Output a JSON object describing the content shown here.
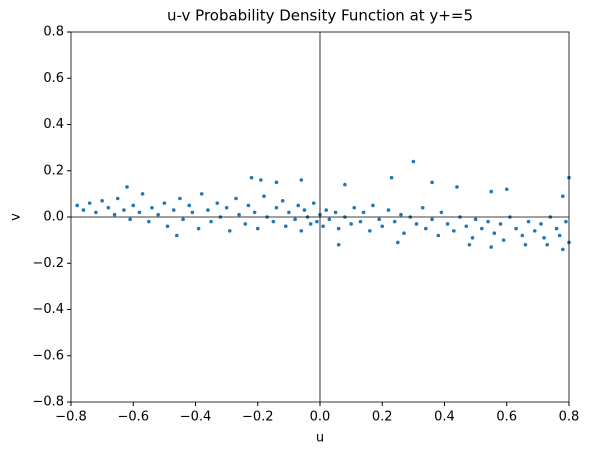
{
  "chart_data": {
    "type": "scatter",
    "title": "u-v Probability Density Function at y+=5",
    "xlabel": "u",
    "ylabel": "v",
    "color": "#1f77b4",
    "xlim": [
      -0.8,
      0.8
    ],
    "ylim": [
      -0.8,
      0.8
    ],
    "xticks": [
      {
        "value": -0.8,
        "label": "−0.8"
      },
      {
        "value": -0.6,
        "label": "−0.6"
      },
      {
        "value": -0.4,
        "label": "−0.4"
      },
      {
        "value": -0.2,
        "label": "−0.2"
      },
      {
        "value": 0,
        "label": "0.0"
      },
      0.2,
      0.4,
      0.6,
      0.8
    ],
    "yticks": [
      {
        "value": -0.8,
        "label": "−0.8"
      },
      {
        "value": -0.6,
        "label": "−0.6"
      },
      {
        "value": -0.4,
        "label": "−0.4"
      },
      {
        "value": -0.2,
        "label": "−0.2"
      },
      {
        "value": 0,
        "label": "0.0"
      },
      0.2,
      0.4,
      0.6,
      0.8
    ],
    "axhline": 0,
    "axvline": 0,
    "x": [
      -0.76,
      -0.74,
      -0.72,
      -0.7,
      -0.68,
      -0.66,
      -0.65,
      -0.63,
      -0.61,
      -0.6,
      -0.58,
      -0.57,
      -0.55,
      -0.54,
      -0.52,
      -0.5,
      -0.49,
      -0.47,
      -0.45,
      -0.44,
      -0.42,
      -0.41,
      -0.39,
      -0.38,
      -0.36,
      -0.35,
      -0.33,
      -0.32,
      -0.3,
      -0.29,
      -0.27,
      -0.26,
      -0.24,
      -0.23,
      -0.21,
      -0.2,
      -0.18,
      -0.17,
      -0.15,
      -0.14,
      -0.12,
      -0.11,
      -0.1,
      -0.08,
      -0.07,
      -0.06,
      -0.05,
      -0.04,
      -0.03,
      -0.02,
      -0.01,
      0.0,
      0.01,
      0.02,
      0.03,
      0.05,
      0.06,
      0.08,
      0.1,
      0.11,
      0.13,
      0.14,
      0.16,
      0.17,
      0.19,
      0.2,
      0.22,
      0.24,
      0.26,
      0.27,
      0.29,
      0.31,
      0.33,
      0.34,
      0.36,
      0.38,
      0.39,
      0.41,
      0.43,
      0.45,
      0.47,
      0.49,
      0.5,
      0.52,
      0.54,
      0.56,
      0.58,
      0.59,
      0.61,
      0.63,
      0.65,
      0.67,
      0.69,
      0.71,
      0.72,
      0.74,
      0.76,
      0.77,
      0.79,
      0.3,
      0.23,
      0.8,
      0.36,
      -0.62,
      -0.22,
      -0.19,
      -0.14,
      -0.06,
      0.44,
      0.08,
      0.55,
      0.6,
      0.78,
      -0.78,
      0.8,
      0.78,
      0.73,
      0.66,
      0.55,
      0.48,
      0.06,
      0.25,
      -0.46
    ],
    "values": [
      0.03,
      0.06,
      0.02,
      0.07,
      0.04,
      0.01,
      0.08,
      0.03,
      -0.01,
      0.05,
      0.02,
      0.1,
      -0.02,
      0.04,
      0.01,
      0.06,
      -0.04,
      0.03,
      0.08,
      -0.01,
      0.05,
      0.02,
      -0.05,
      0.1,
      0.03,
      -0.02,
      0.06,
      0.0,
      0.04,
      -0.06,
      0.08,
      0.01,
      -0.03,
      0.05,
      0.02,
      -0.05,
      0.09,
      0.0,
      -0.02,
      0.04,
      0.07,
      -0.04,
      0.02,
      -0.01,
      0.05,
      -0.06,
      0.03,
      0.0,
      -0.03,
      0.06,
      -0.02,
      0.01,
      -0.04,
      0.03,
      -0.01,
      0.02,
      -0.05,
      0.0,
      -0.03,
      0.04,
      -0.02,
      0.02,
      -0.06,
      0.05,
      -0.01,
      -0.04,
      0.03,
      -0.02,
      0.01,
      -0.07,
      0.0,
      -0.03,
      0.04,
      -0.05,
      -0.01,
      -0.08,
      0.02,
      -0.03,
      -0.06,
      0.0,
      -0.04,
      -0.09,
      -0.01,
      -0.05,
      -0.02,
      -0.07,
      -0.03,
      -0.1,
      0.0,
      -0.05,
      -0.08,
      -0.02,
      -0.06,
      -0.03,
      -0.09,
      0.0,
      -0.05,
      -0.08,
      -0.02,
      0.24,
      0.17,
      0.17,
      0.15,
      0.13,
      0.17,
      0.16,
      0.15,
      0.16,
      0.13,
      0.14,
      0.11,
      0.12,
      0.09,
      0.05,
      -0.11,
      -0.14,
      -0.12,
      -0.12,
      -0.13,
      -0.12,
      -0.12,
      -0.11,
      -0.08
    ]
  }
}
